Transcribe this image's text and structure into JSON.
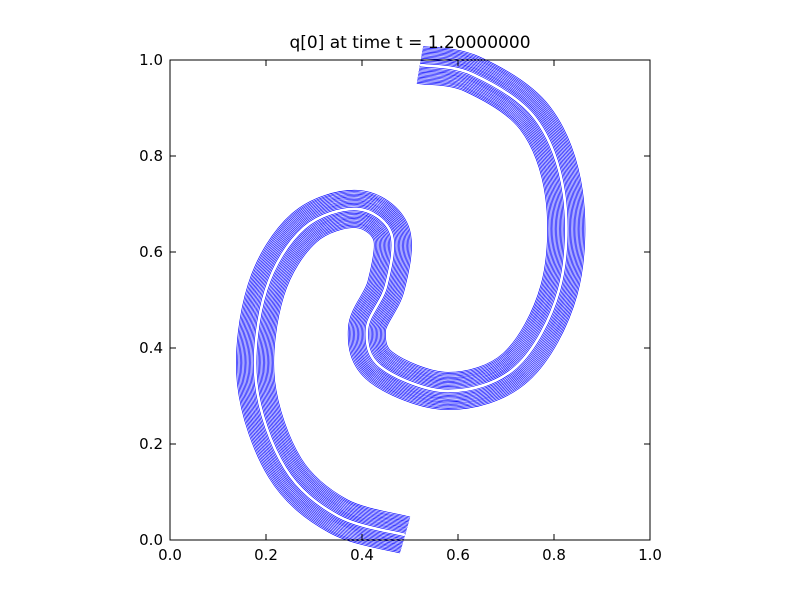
{
  "chart_data": {
    "type": "contour",
    "title": "q[0] at time t =     1.20000000",
    "color": "#0000ff",
    "xlim": [
      0,
      1
    ],
    "ylim": [
      0,
      1
    ],
    "xticks": [
      {
        "value": 0,
        "label": "0.0"
      },
      {
        "value": 0.2,
        "label": "0.2"
      },
      {
        "value": 0.4,
        "label": "0.4"
      },
      {
        "value": 0.6,
        "label": "0.6"
      },
      {
        "value": 0.8,
        "label": "0.8"
      },
      {
        "value": 1,
        "label": "1.0"
      }
    ],
    "yticks": [
      {
        "value": 0,
        "label": "0.0"
      },
      {
        "value": 0.2,
        "label": "0.2"
      },
      {
        "value": 0.4,
        "label": "0.4"
      },
      {
        "value": 0.6,
        "label": "0.6"
      },
      {
        "value": 0.8,
        "label": "0.8"
      },
      {
        "value": 1,
        "label": "1.0"
      }
    ]
  }
}
